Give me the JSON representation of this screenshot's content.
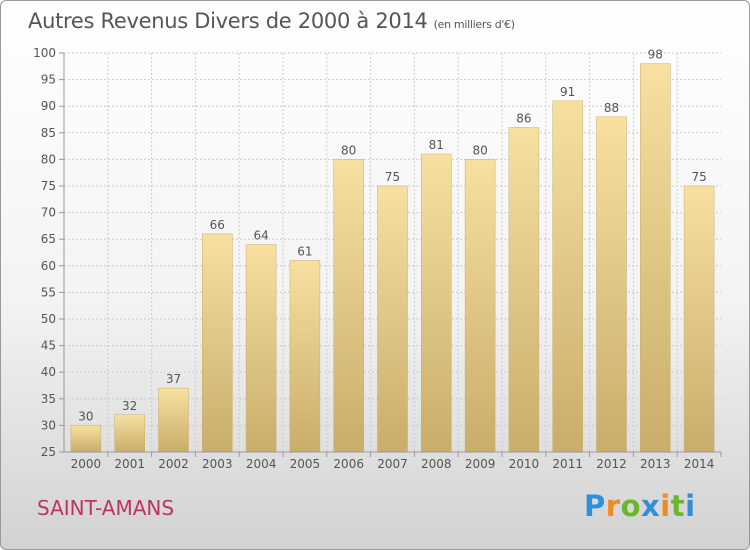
{
  "header": {
    "title": "Autres Revenus Divers de 2000 à 2014",
    "unit": "(en milliers d'€)"
  },
  "footer": {
    "commune": "SAINT-AMANS",
    "logo": {
      "text": "Proxiti",
      "letters": [
        "P",
        "r",
        "o",
        "x",
        "i",
        "t",
        "i"
      ],
      "colors": [
        "#2f8fd8",
        "#f08a1c",
        "#6cb52d",
        "#2f8fd8",
        "#f08a1c",
        "#6cb52d",
        "#2f8fd8"
      ]
    }
  },
  "colors": {
    "bar_light": "#f7e0a0",
    "bar_dark": "#c9ad6a",
    "grid": "#cccccc",
    "axis": "#999999",
    "title": "#555555",
    "commune": "#c2325e"
  },
  "chart_data": {
    "type": "bar",
    "categories": [
      "2000",
      "2001",
      "2002",
      "2003",
      "2004",
      "2005",
      "2006",
      "2007",
      "2008",
      "2009",
      "2010",
      "2011",
      "2012",
      "2013",
      "2014"
    ],
    "values": [
      30,
      32,
      37,
      66,
      64,
      61,
      80,
      75,
      81,
      80,
      86,
      91,
      88,
      98,
      75
    ],
    "ylim": [
      25,
      100
    ],
    "yticks": [
      25,
      30,
      35,
      40,
      45,
      50,
      55,
      60,
      65,
      70,
      75,
      80,
      85,
      90,
      95,
      100
    ],
    "grid": true,
    "xlabel": "",
    "ylabel": ""
  }
}
